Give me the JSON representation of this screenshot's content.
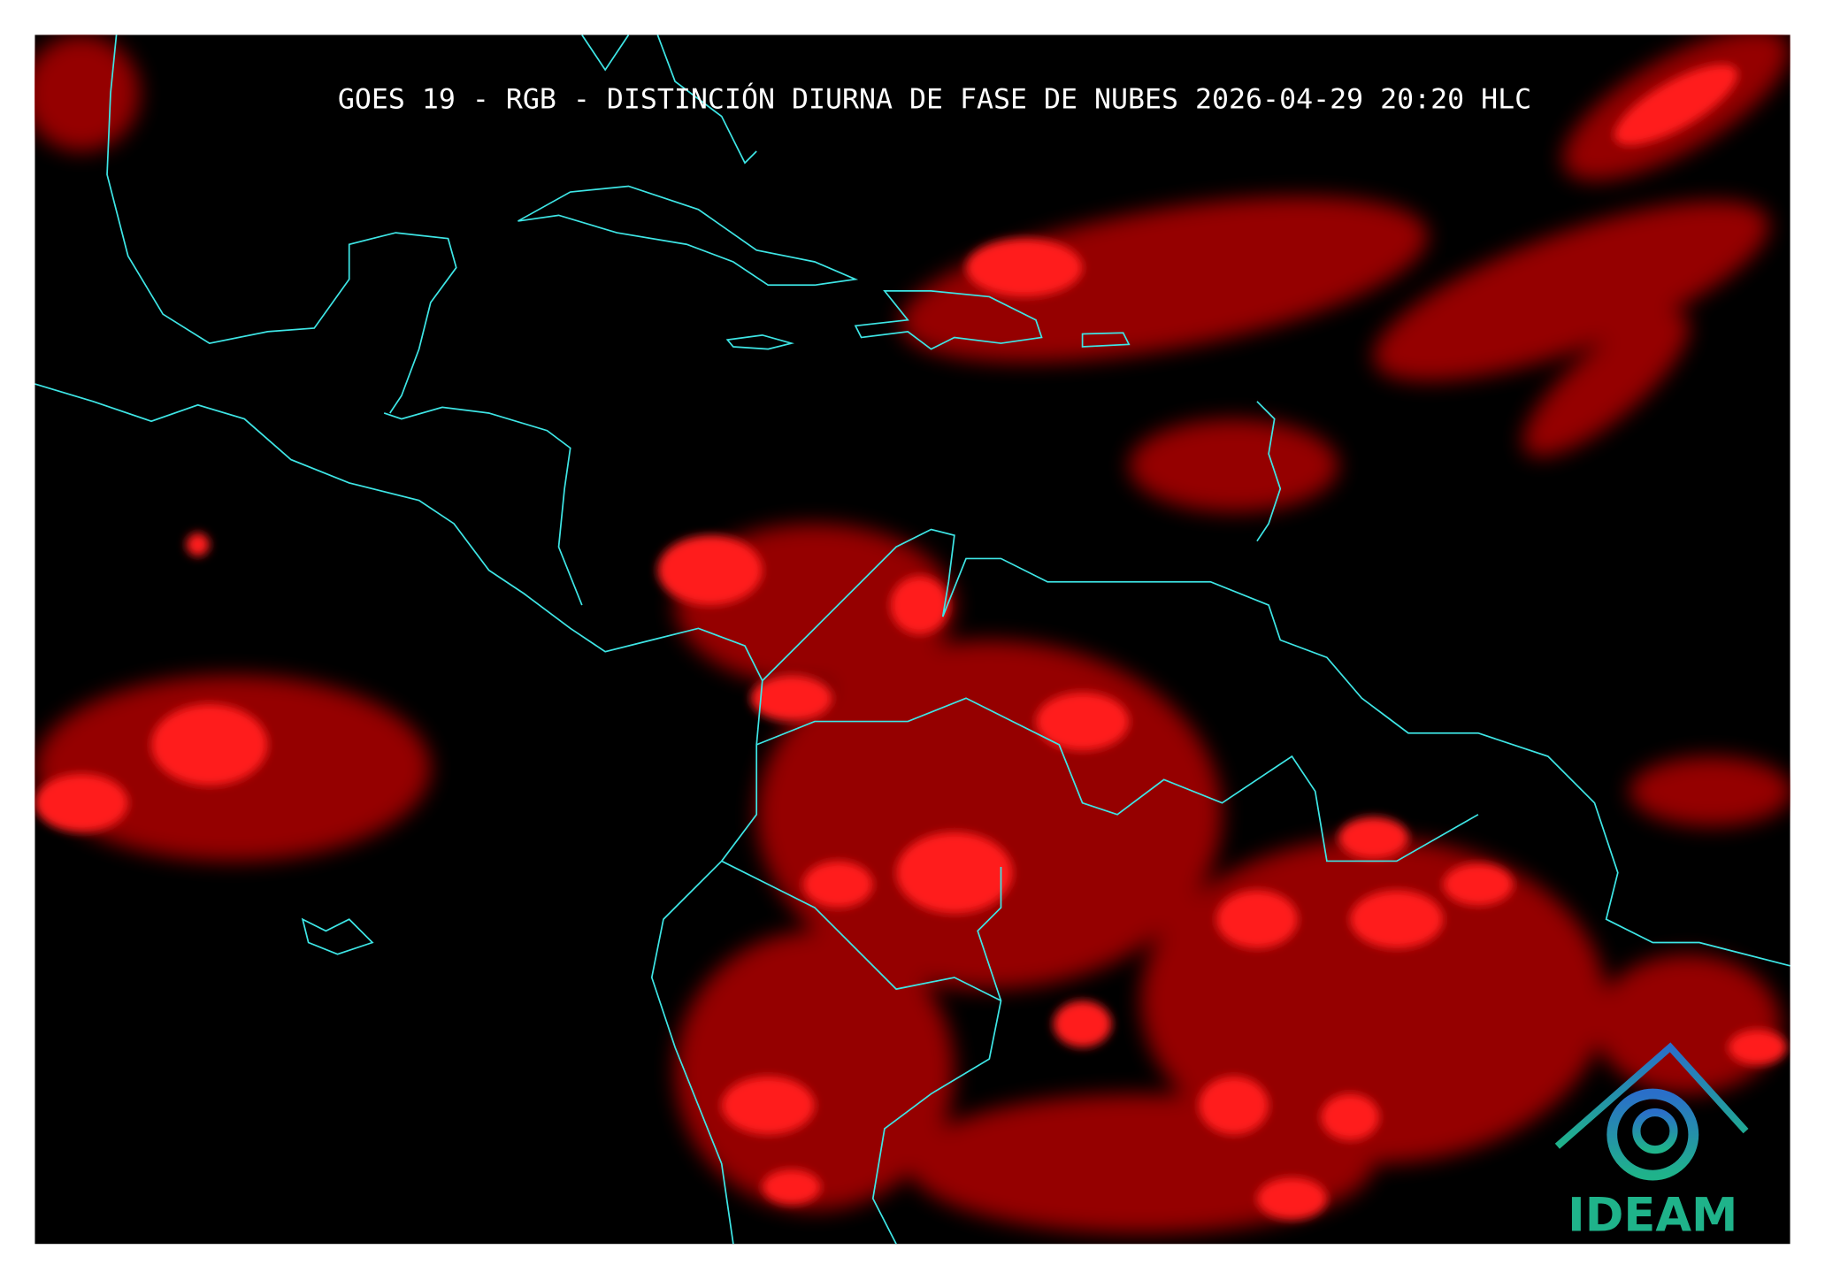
{
  "title": "GOES 19 - RGB - DISTINCIÓN DIURNA DE FASE DE NUBES 2026-04-29 20:20 HLC",
  "logo": {
    "text": "IDEAM"
  }
}
